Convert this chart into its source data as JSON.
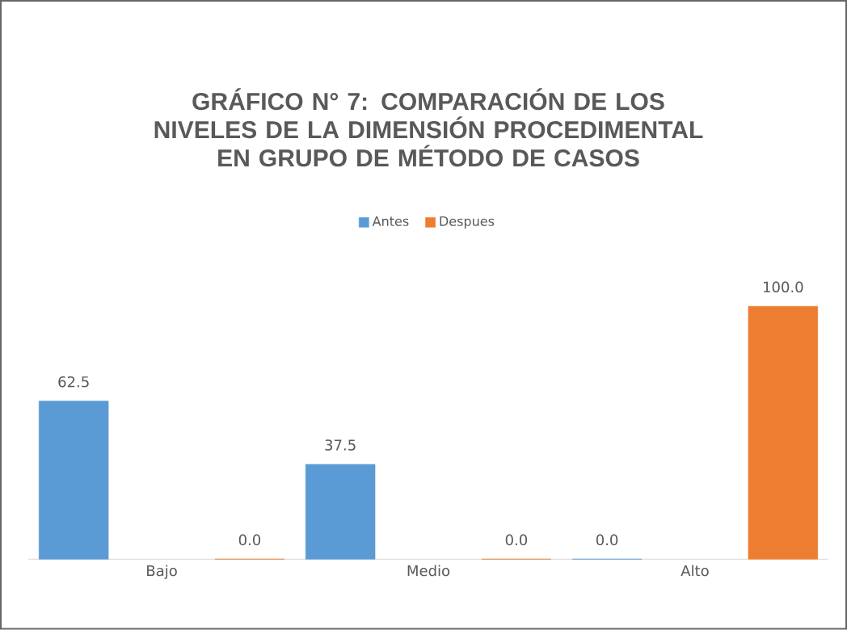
{
  "chart_data": {
    "type": "bar",
    "title": "GRÁFICO N° 7:  COMPARACIÓN DE LOS NIVELES DE LA DIMENSIÓN PROCEDIMENTAL EN GRUPO DE MÉTODO DE CASOS",
    "categories": [
      "Bajo",
      "Medio",
      "Alto"
    ],
    "series": [
      {
        "name": "Antes",
        "color": "#5b9bd5",
        "values": [
          62.5,
          37.5,
          0
        ],
        "value_labels": [
          "62.5",
          "37.5",
          "0.0"
        ]
      },
      {
        "name": "Despues",
        "color": "#ed7d31",
        "values": [
          0,
          0,
          100
        ],
        "value_labels": [
          "0.0",
          "0.0",
          "100.0"
        ]
      }
    ],
    "legend": "top"
  }
}
